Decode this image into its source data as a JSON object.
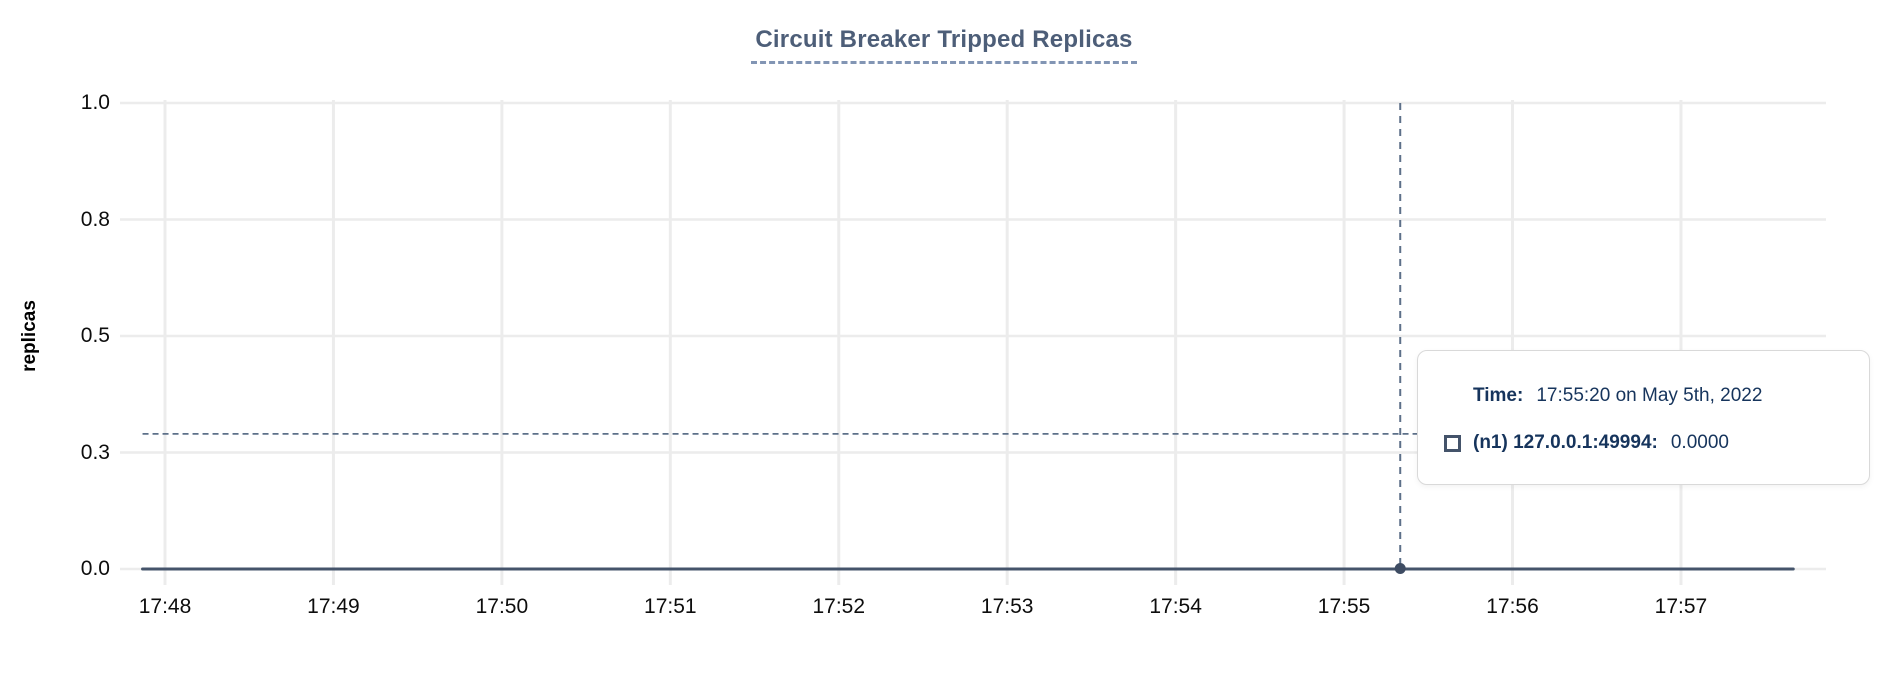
{
  "chart_data": {
    "type": "line",
    "title": "Circuit Breaker Tripped Replicas",
    "ylabel": "replicas",
    "xlabel": "",
    "y_range": [
      0.0,
      1.0
    ],
    "grid": true,
    "y_ticks": [
      {
        "value": 1.0,
        "label": "1.0"
      },
      {
        "value": 0.75,
        "label": "0.8"
      },
      {
        "value": 0.5,
        "label": "0.5"
      },
      {
        "value": 0.25,
        "label": "0.3"
      },
      {
        "value": 0.0,
        "label": "0.0"
      }
    ],
    "x_ticks": [
      "17:48",
      "17:49",
      "17:50",
      "17:51",
      "17:52",
      "17:53",
      "17:54",
      "17:55",
      "17:56",
      "17:57"
    ],
    "series": [
      {
        "name": "(n1) 127.0.0.1:49994",
        "points": [
          {
            "t": "17:47:52",
            "v": 0.0
          },
          {
            "t": "17:57:40",
            "v": 0.0
          }
        ]
      }
    ],
    "crosshair": {
      "time": "17:55:20",
      "point_value": 0.0,
      "hover_y_value": 0.29
    },
    "tooltip": {
      "time_label": "Time:",
      "time_value": "17:55:20 on May 5th, 2022",
      "series_swatch": "square-outline-icon",
      "series_label": "(n1) 127.0.0.1:49994:",
      "series_value": "0.0000"
    },
    "colors": {
      "line": "#45546b",
      "dot": "#3e4c63",
      "grid": "#ececec",
      "crosshair": "#5d7089",
      "title": "#4d5e78",
      "title_underline": "#8295b4",
      "tick_label": "#0d0d0d",
      "tooltip_text": "#16345c",
      "tooltip_border": "#d9d9d9",
      "swatch": "#44536a"
    }
  }
}
